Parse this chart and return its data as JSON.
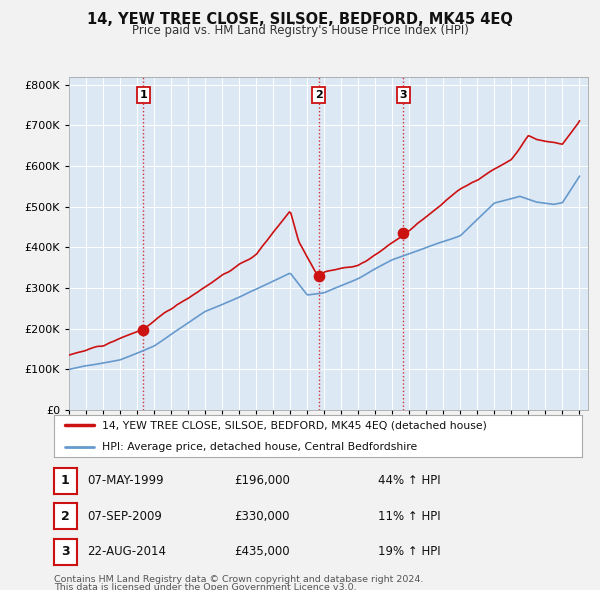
{
  "title": "14, YEW TREE CLOSE, SILSOE, BEDFORD, MK45 4EQ",
  "subtitle": "Price paid vs. HM Land Registry's House Price Index (HPI)",
  "line1_label": "14, YEW TREE CLOSE, SILSOE, BEDFORD, MK45 4EQ (detached house)",
  "line2_label": "HPI: Average price, detached house, Central Bedfordshire",
  "line1_color": "#cc1111",
  "line2_color": "#6699cc",
  "plot_bg": "#dde8f5",
  "fig_bg": "#f2f2f2",
  "transactions": [
    {
      "num": 1,
      "date": "07-MAY-1999",
      "year": 1999.36,
      "price": 196000,
      "pct": "44%",
      "dir": "↑"
    },
    {
      "num": 2,
      "date": "07-SEP-2009",
      "year": 2009.68,
      "price": 330000,
      "pct": "11%",
      "dir": "↑"
    },
    {
      "num": 3,
      "date": "22-AUG-2014",
      "year": 2014.64,
      "price": 435000,
      "pct": "19%",
      "dir": "↑"
    }
  ],
  "footer1": "Contains HM Land Registry data © Crown copyright and database right 2024.",
  "footer2": "This data is licensed under the Open Government Licence v3.0.",
  "ylim": [
    0,
    820000
  ],
  "xlim_start": 1995.0,
  "xlim_end": 2025.5
}
